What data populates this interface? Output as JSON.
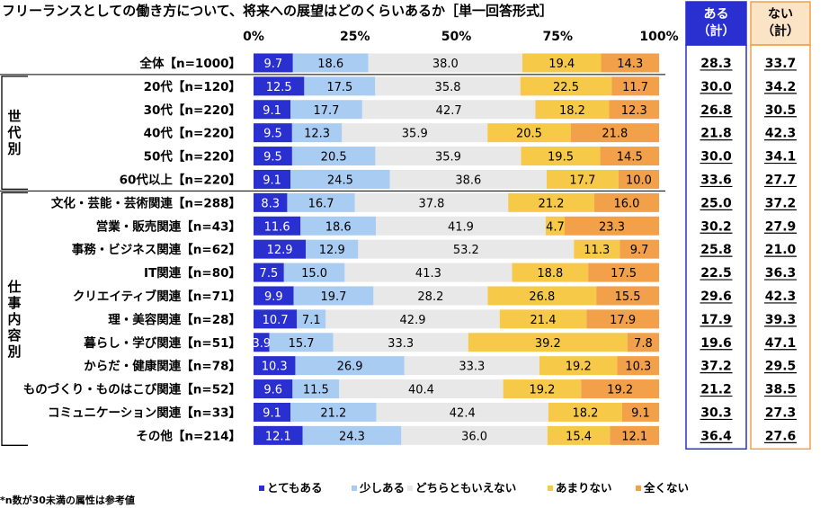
{
  "chart_data": {
    "type": "bar",
    "orientation": "horizontal",
    "stacked": true,
    "percent": true,
    "title": "フリーランスとしての働き方について、将来への展望はどのくらいあるか［単一回答形式］",
    "xlim": [
      0,
      100
    ],
    "x_ticks": [
      "0%",
      "25%",
      "50%",
      "75%",
      "100%"
    ],
    "series": [
      {
        "name": "とてもある",
        "color": "#2a2fd0",
        "text_color": "#ffffff"
      },
      {
        "name": "少しある",
        "color": "#a9ccf3",
        "text_color": "#000000"
      },
      {
        "name": "どちらともいえない",
        "color": "#e8e8e8",
        "text_color": "#000000"
      },
      {
        "name": "あまりない",
        "color": "#f7c948",
        "text_color": "#000000"
      },
      {
        "name": "全くない",
        "color": "#f2a04a",
        "text_color": "#000000"
      }
    ],
    "summary_columns": [
      {
        "header": [
          "ある",
          "（計）"
        ],
        "header_bg": "#2a2fd0",
        "header_color": "#ffffff",
        "border": "#2a2fd0"
      },
      {
        "header": [
          "ない",
          "（計）"
        ],
        "header_bg": "#fbe3c6",
        "header_color": "#000000",
        "border": "#f2a04a"
      }
    ],
    "groups": [
      {
        "label": "",
        "rows": [
          {
            "label": "全体【n=1000】",
            "values": [
              "9.7",
              "18.6",
              "38.0",
              "19.4",
              "14.3"
            ],
            "sum": [
              "28.3",
              "33.7"
            ]
          }
        ]
      },
      {
        "label": "世代別",
        "rows": [
          {
            "label": "20代【n=120】",
            "values": [
              "12.5",
              "17.5",
              "35.8",
              "22.5",
              "11.7"
            ],
            "sum": [
              "30.0",
              "34.2"
            ]
          },
          {
            "label": "30代【n=220】",
            "values": [
              "9.1",
              "17.7",
              "42.7",
              "18.2",
              "12.3"
            ],
            "sum": [
              "26.8",
              "30.5"
            ]
          },
          {
            "label": "40代【n=220】",
            "values": [
              "9.5",
              "12.3",
              "35.9",
              "20.5",
              "21.8"
            ],
            "sum": [
              "21.8",
              "42.3"
            ]
          },
          {
            "label": "50代【n=220】",
            "values": [
              "9.5",
              "20.5",
              "35.9",
              "19.5",
              "14.5"
            ],
            "sum": [
              "30.0",
              "34.1"
            ]
          },
          {
            "label": "60代以上【n=220】",
            "values": [
              "9.1",
              "24.5",
              "38.6",
              "17.7",
              "10.0"
            ],
            "sum": [
              "33.6",
              "27.7"
            ]
          }
        ]
      },
      {
        "label": "仕事内容別",
        "rows": [
          {
            "label": "文化・芸能・芸術関連【n=288】",
            "values": [
              "8.3",
              "16.7",
              "37.8",
              "21.2",
              "16.0"
            ],
            "sum": [
              "25.0",
              "37.2"
            ]
          },
          {
            "label": "営業・販売関連【n=43】",
            "values": [
              "11.6",
              "18.6",
              "41.9",
              "4.7",
              "23.3"
            ],
            "sum": [
              "30.2",
              "27.9"
            ]
          },
          {
            "label": "事務・ビジネス関連【n=62】",
            "values": [
              "12.9",
              "12.9",
              "53.2",
              "11.3",
              "9.7"
            ],
            "sum": [
              "25.8",
              "21.0"
            ]
          },
          {
            "label": "IT関連【n=80】",
            "values": [
              "7.5",
              "15.0",
              "41.3",
              "18.8",
              "17.5"
            ],
            "sum": [
              "22.5",
              "36.3"
            ]
          },
          {
            "label": "クリエイティブ関連【n=71】",
            "values": [
              "9.9",
              "19.7",
              "28.2",
              "26.8",
              "15.5"
            ],
            "sum": [
              "29.6",
              "42.3"
            ]
          },
          {
            "label": "理・美容関連【n=28】",
            "values": [
              "10.7",
              "7.1",
              "42.9",
              "21.4",
              "17.9"
            ],
            "sum": [
              "17.9",
              "39.3"
            ]
          },
          {
            "label": "暮らし・学び関連【n=51】",
            "values": [
              "3.9",
              "15.7",
              "33.3",
              "39.2",
              "7.8"
            ],
            "sum": [
              "19.6",
              "47.1"
            ]
          },
          {
            "label": "からだ・健康関連【n=78】",
            "values": [
              "10.3",
              "26.9",
              "33.3",
              "19.2",
              "10.3"
            ],
            "sum": [
              "37.2",
              "29.5"
            ]
          },
          {
            "label": "ものづくり・ものはこび関連【n=52】",
            "values": [
              "9.6",
              "11.5",
              "40.4",
              "19.2",
              "19.2"
            ],
            "sum": [
              "21.2",
              "38.5"
            ]
          },
          {
            "label": "コミュニケーション関連【n=33】",
            "values": [
              "9.1",
              "21.2",
              "42.4",
              "18.2",
              "9.1"
            ],
            "sum": [
              "30.3",
              "27.3"
            ]
          },
          {
            "label": "その他【n=214】",
            "values": [
              "12.1",
              "24.3",
              "36.0",
              "15.4",
              "12.1"
            ],
            "sum": [
              "36.4",
              "27.6"
            ]
          }
        ]
      }
    ],
    "legend_position": "bottom",
    "note": "*n数が30未満の属性は参考値"
  }
}
